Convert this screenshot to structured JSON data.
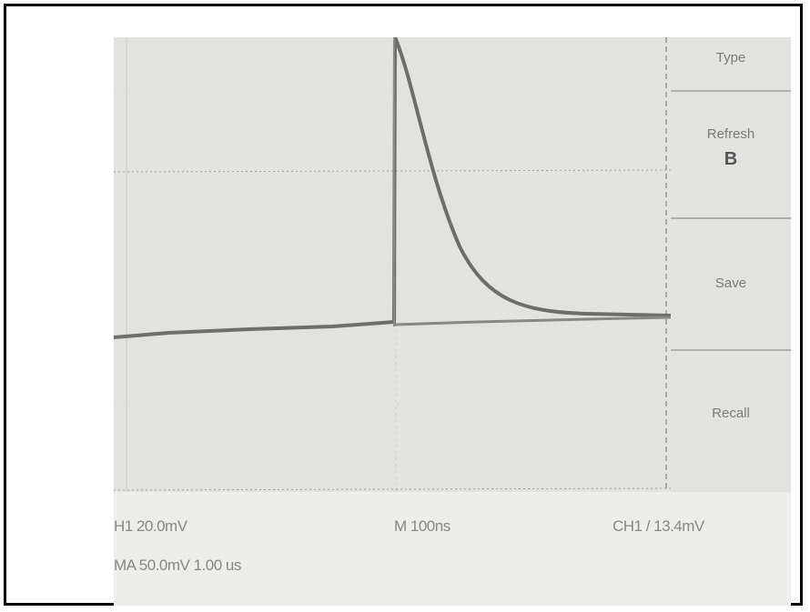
{
  "scope": {
    "menu": [
      {
        "label": "Type"
      },
      {
        "label": "Refresh",
        "value": "B"
      },
      {
        "label": "Save"
      },
      {
        "label": "Recall"
      }
    ],
    "readouts": {
      "ch1_scale": "H1 20.0mV",
      "math_scale": "MA 50.0mV 1.00 us",
      "timebase": "M 100ns",
      "trigger": "CH1 / 13.4mV"
    },
    "colors": {
      "screen": "#e4e2de",
      "trace": "#6f6d69",
      "grid": "#b0aeaa"
    }
  }
}
